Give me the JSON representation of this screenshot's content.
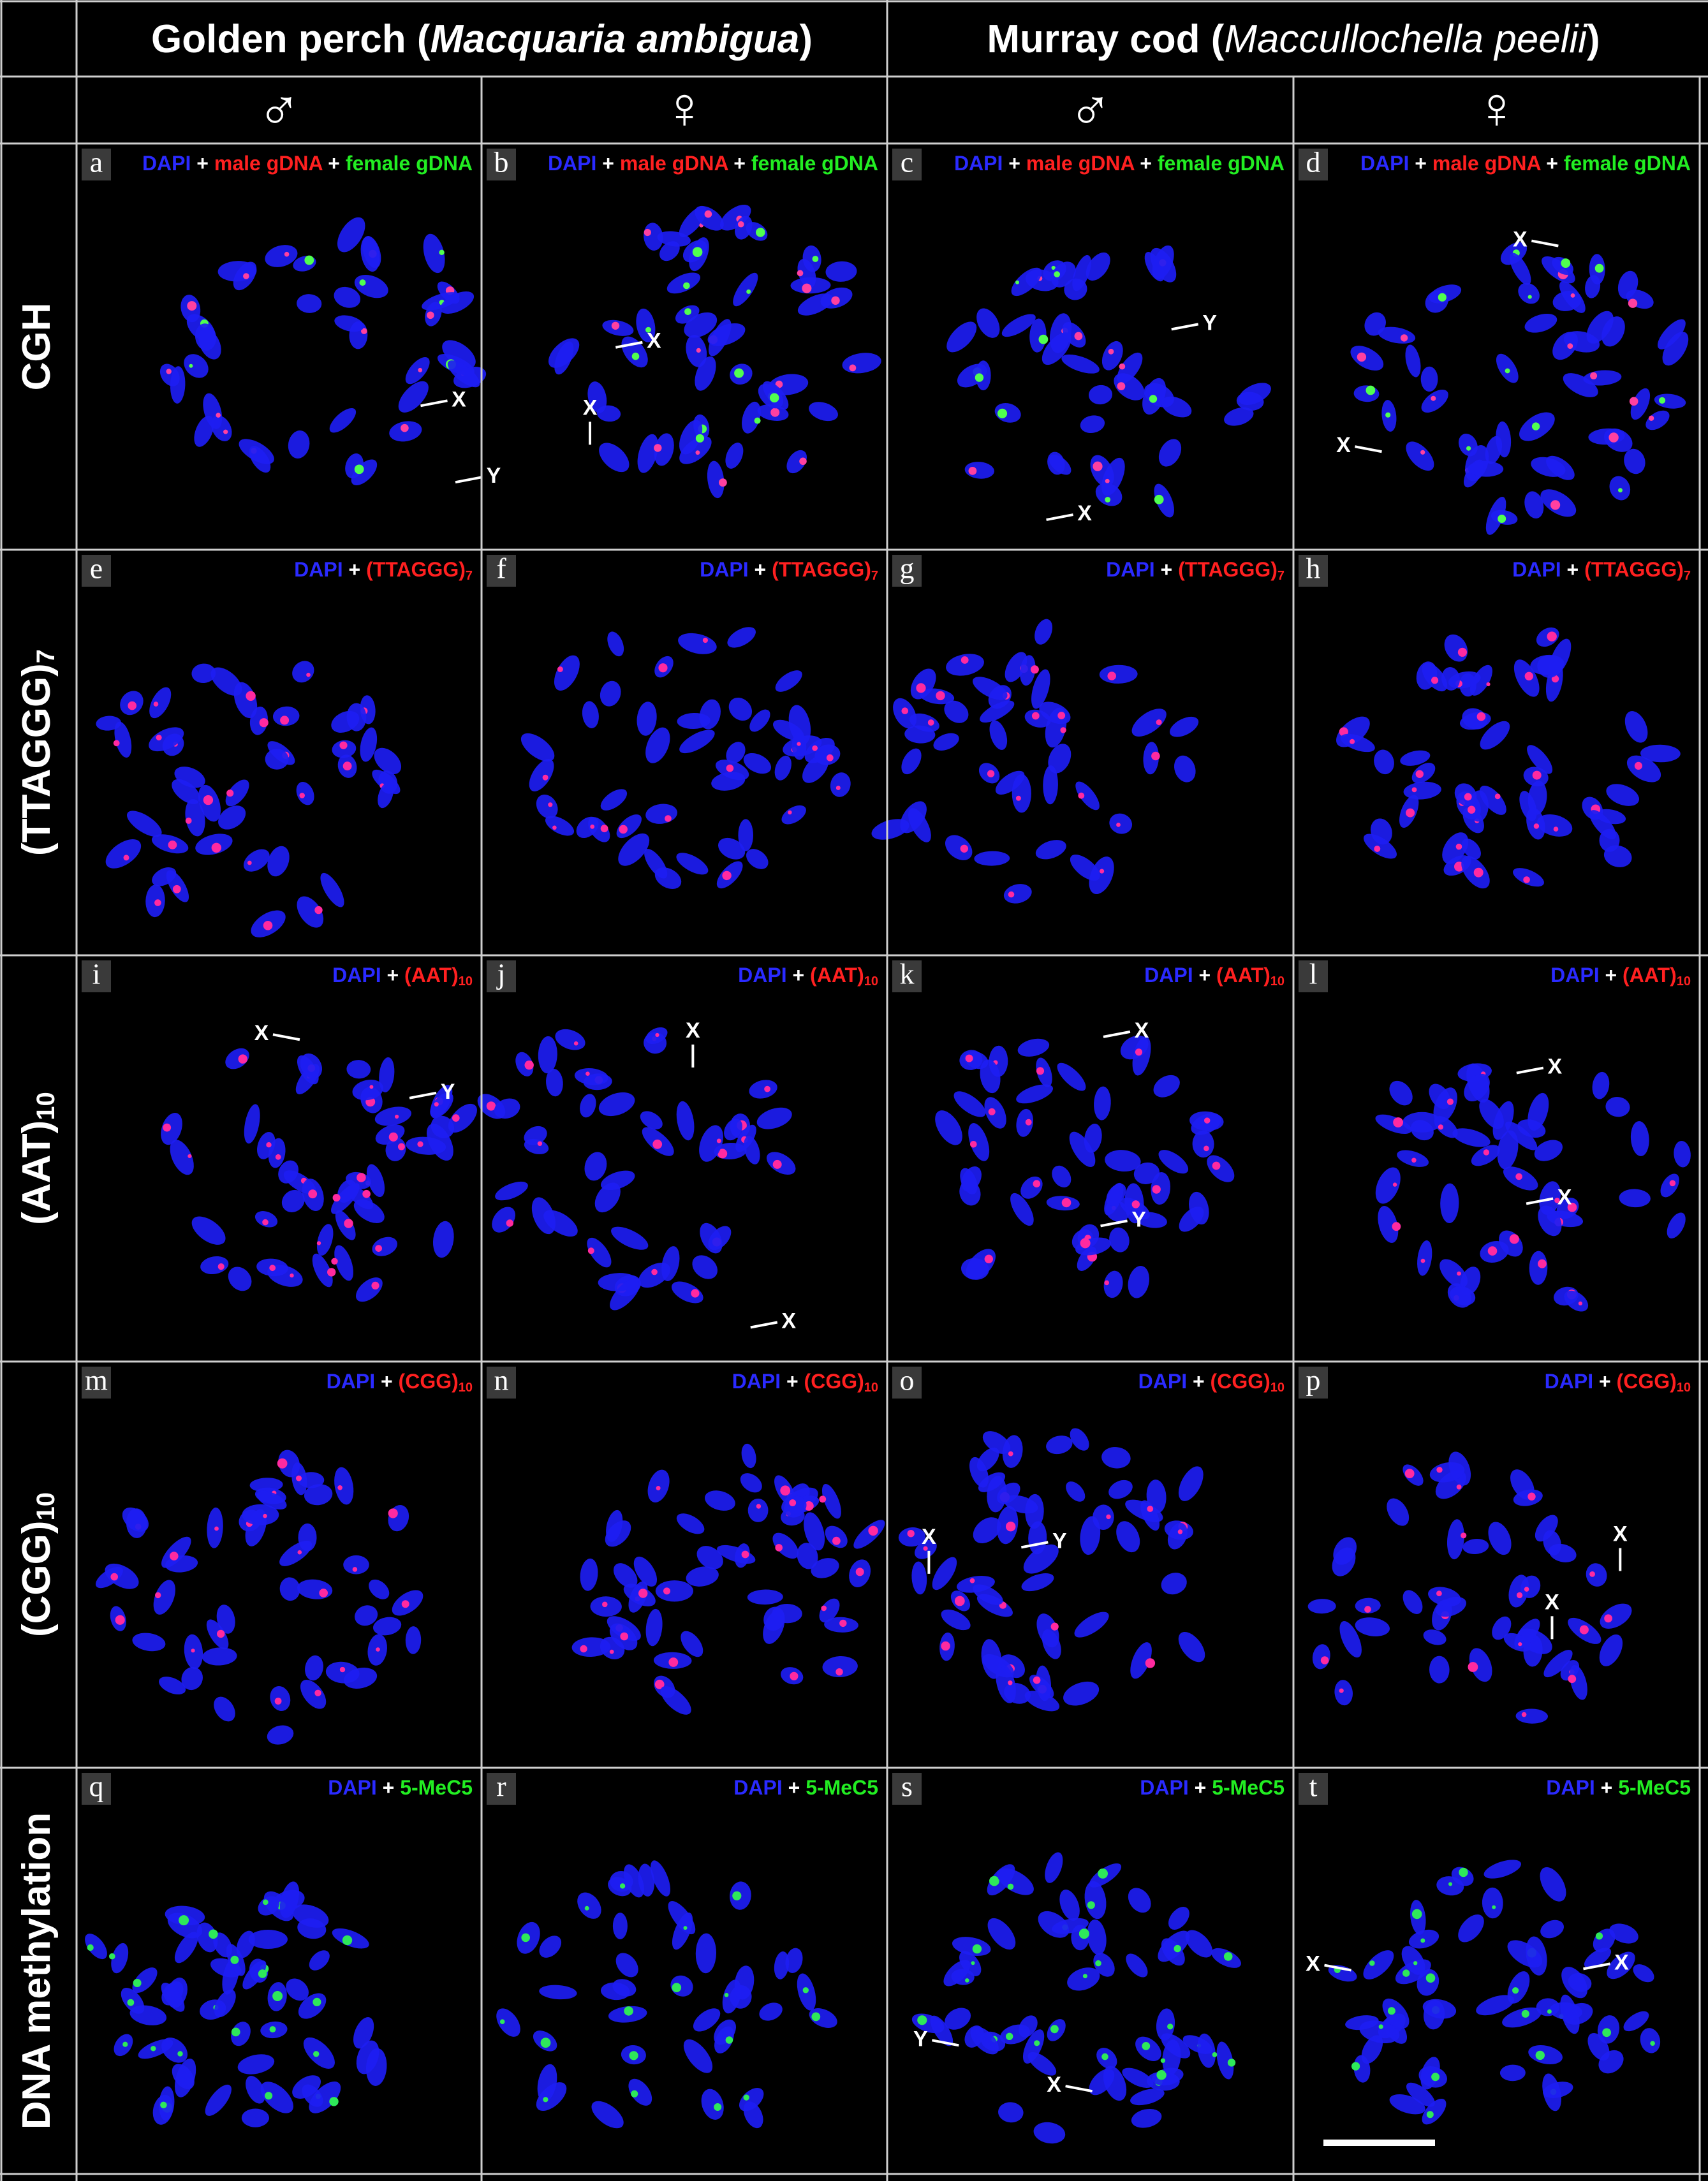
{
  "header": {
    "species": [
      {
        "prefix": "Golden perch (",
        "latin": "Macquaria ambigua",
        "suffix": ")"
      },
      {
        "prefix": "Murray cod (",
        "latin": "Maccullochella peelii",
        "suffix": ")"
      }
    ],
    "sexes": [
      "♂",
      "♀",
      "♂",
      "♀"
    ]
  },
  "rows": [
    {
      "label": "CGH",
      "probe": [
        {
          "text": "DAPI",
          "color": "#2a2aff"
        },
        {
          "text": " + ",
          "color": "#ffffff"
        },
        {
          "text": "male gDNA",
          "color": "#ff2020"
        },
        {
          "text": " + ",
          "color": "#ffffff"
        },
        {
          "text": "female gDNA",
          "color": "#22ee22"
        }
      ],
      "panels": [
        {
          "letter": "a",
          "annotations": [
            "X",
            "Y"
          ]
        },
        {
          "letter": "b",
          "annotations": [
            "X",
            "X"
          ]
        },
        {
          "letter": "c",
          "annotations": [
            "Y",
            "X"
          ]
        },
        {
          "letter": "d",
          "annotations": [
            "X",
            "X"
          ]
        }
      ]
    },
    {
      "label": "(TTAGGG)",
      "label_sub": "7",
      "probe": [
        {
          "text": "DAPI",
          "color": "#2a2aff"
        },
        {
          "text": " + ",
          "color": "#ffffff"
        },
        {
          "text": "(TTAGGG)",
          "color": "#ff2020"
        },
        {
          "text": "7",
          "color": "#ff2020",
          "sub": true
        }
      ],
      "panels": [
        {
          "letter": "e",
          "annotations": []
        },
        {
          "letter": "f",
          "annotations": []
        },
        {
          "letter": "g",
          "annotations": []
        },
        {
          "letter": "h",
          "annotations": []
        }
      ]
    },
    {
      "label": "(AAT)",
      "label_sub": "10",
      "probe": [
        {
          "text": "DAPI",
          "color": "#2a2aff"
        },
        {
          "text": " + ",
          "color": "#ffffff"
        },
        {
          "text": "(AAT)",
          "color": "#ff2020"
        },
        {
          "text": "10",
          "color": "#ff2020",
          "sub": true
        }
      ],
      "panels": [
        {
          "letter": "i",
          "annotations": [
            "X",
            "Y"
          ]
        },
        {
          "letter": "j",
          "annotations": [
            "X",
            "X"
          ]
        },
        {
          "letter": "k",
          "annotations": [
            "X",
            "Y"
          ]
        },
        {
          "letter": "l",
          "annotations": [
            "X",
            "X"
          ]
        }
      ]
    },
    {
      "label": "(CGG)",
      "label_sub": "10",
      "probe": [
        {
          "text": "DAPI",
          "color": "#2a2aff"
        },
        {
          "text": " + ",
          "color": "#ffffff"
        },
        {
          "text": "(CGG)",
          "color": "#ff2020"
        },
        {
          "text": "10",
          "color": "#ff2020",
          "sub": true
        }
      ],
      "panels": [
        {
          "letter": "m",
          "annotations": []
        },
        {
          "letter": "n",
          "annotations": []
        },
        {
          "letter": "o",
          "annotations": [
            "X",
            "Y"
          ]
        },
        {
          "letter": "p",
          "annotations": [
            "X",
            "X"
          ]
        }
      ]
    },
    {
      "label": "DNA methylation",
      "probe": [
        {
          "text": "DAPI",
          "color": "#2a2aff"
        },
        {
          "text": " + ",
          "color": "#ffffff"
        },
        {
          "text": "5-MeC5",
          "color": "#22ee22"
        }
      ],
      "panels": [
        {
          "letter": "q",
          "annotations": []
        },
        {
          "letter": "r",
          "annotations": []
        },
        {
          "letter": "s",
          "annotations": [
            "Y",
            "X"
          ]
        },
        {
          "letter": "t",
          "annotations": [
            "X",
            "X"
          ]
        }
      ]
    }
  ]
}
